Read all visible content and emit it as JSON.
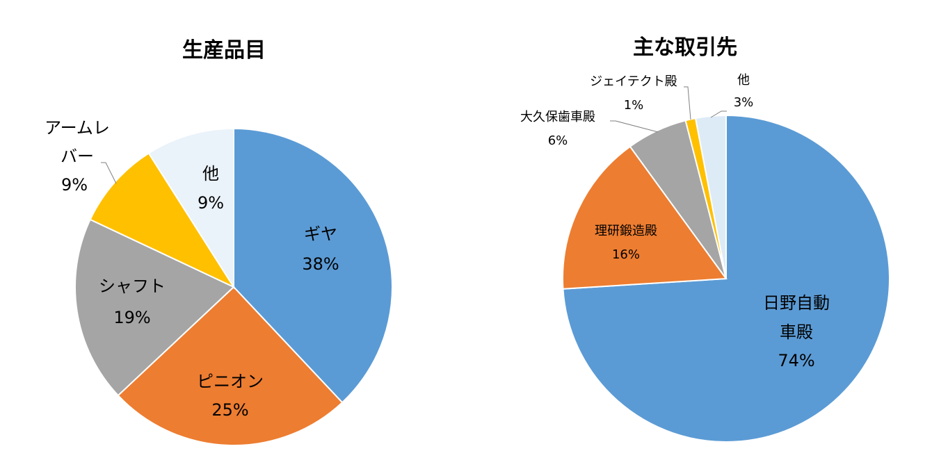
{
  "chart_data": [
    {
      "type": "pie",
      "title": "生産品目",
      "slices": [
        {
          "name": "ギヤ",
          "value": 38,
          "pct_label": "38%",
          "color": "#5B9BD5"
        },
        {
          "name": "ピニオン",
          "value": 25,
          "pct_label": "25%",
          "color": "#ED7D31"
        },
        {
          "name": "シャフト",
          "value": 19,
          "pct_label": "19%",
          "color": "#A5A5A5"
        },
        {
          "name": "アームレバー",
          "name_lines": [
            "アームレ",
            "バー"
          ],
          "value": 9,
          "pct_label": "9%",
          "color": "#FFC000"
        },
        {
          "name": "他",
          "value": 9,
          "pct_label": "9%",
          "color": "#EAF2FA"
        }
      ]
    },
    {
      "type": "pie",
      "title": "主な取引先",
      "slices": [
        {
          "name": "日野自動車殿",
          "name_lines": [
            "日野自動",
            "車殿"
          ],
          "value": 74,
          "pct_label": "74%",
          "color": "#5B9BD5"
        },
        {
          "name": "理研鍛造殿",
          "value": 16,
          "pct_label": "16%",
          "color": "#ED7D31"
        },
        {
          "name": "大久保歯車殿",
          "value": 6,
          "pct_label": "6%",
          "color": "#A5A5A5"
        },
        {
          "name": "ジェイテクト殿",
          "value": 1,
          "pct_label": "1%",
          "color": "#FFC000"
        },
        {
          "name": "他",
          "value": 3,
          "pct_label": "3%",
          "color": "#DDEBF7"
        }
      ]
    }
  ]
}
